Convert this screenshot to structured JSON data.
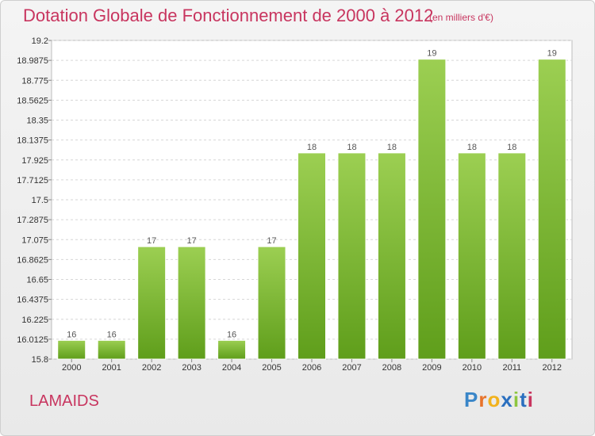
{
  "title": "Dotation Globale de Fonctionnement de 2000 à 2012",
  "subtitle": "(en milliers d'€)",
  "commune": "LAMAIDS",
  "logo": {
    "letters": [
      "P",
      "r",
      "o",
      "x",
      "i",
      "t",
      "i"
    ],
    "colors": [
      "#3a86c8",
      "#e8732a",
      "#f2b21c",
      "#2a6fbf",
      "#8dc63f",
      "#2a6fbf",
      "#c8355f"
    ]
  },
  "colors": {
    "bar_top": "#9ccf52",
    "bar_bottom": "#5f9e1b",
    "title": "#c8355f"
  },
  "chart_data": {
    "type": "bar",
    "title": "Dotation Globale de Fonctionnement de 2000 à 2012",
    "xlabel": "",
    "ylabel": "",
    "categories": [
      "2000",
      "2001",
      "2002",
      "2003",
      "2004",
      "2005",
      "2006",
      "2007",
      "2008",
      "2009",
      "2010",
      "2011",
      "2012"
    ],
    "values": [
      16,
      16,
      17,
      17,
      16,
      17,
      18,
      18,
      18,
      19,
      18,
      18,
      19
    ],
    "ylim": [
      15.8,
      19.2
    ],
    "yticks": [
      "15.8",
      "16.0125",
      "16.225",
      "16.4375",
      "16.65",
      "16.8625",
      "17.075",
      "17.2875",
      "17.5",
      "17.7125",
      "17.925",
      "18.1375",
      "18.35",
      "18.5625",
      "18.775",
      "18.9875",
      "19.2"
    ],
    "grid": true,
    "legend": "none"
  }
}
